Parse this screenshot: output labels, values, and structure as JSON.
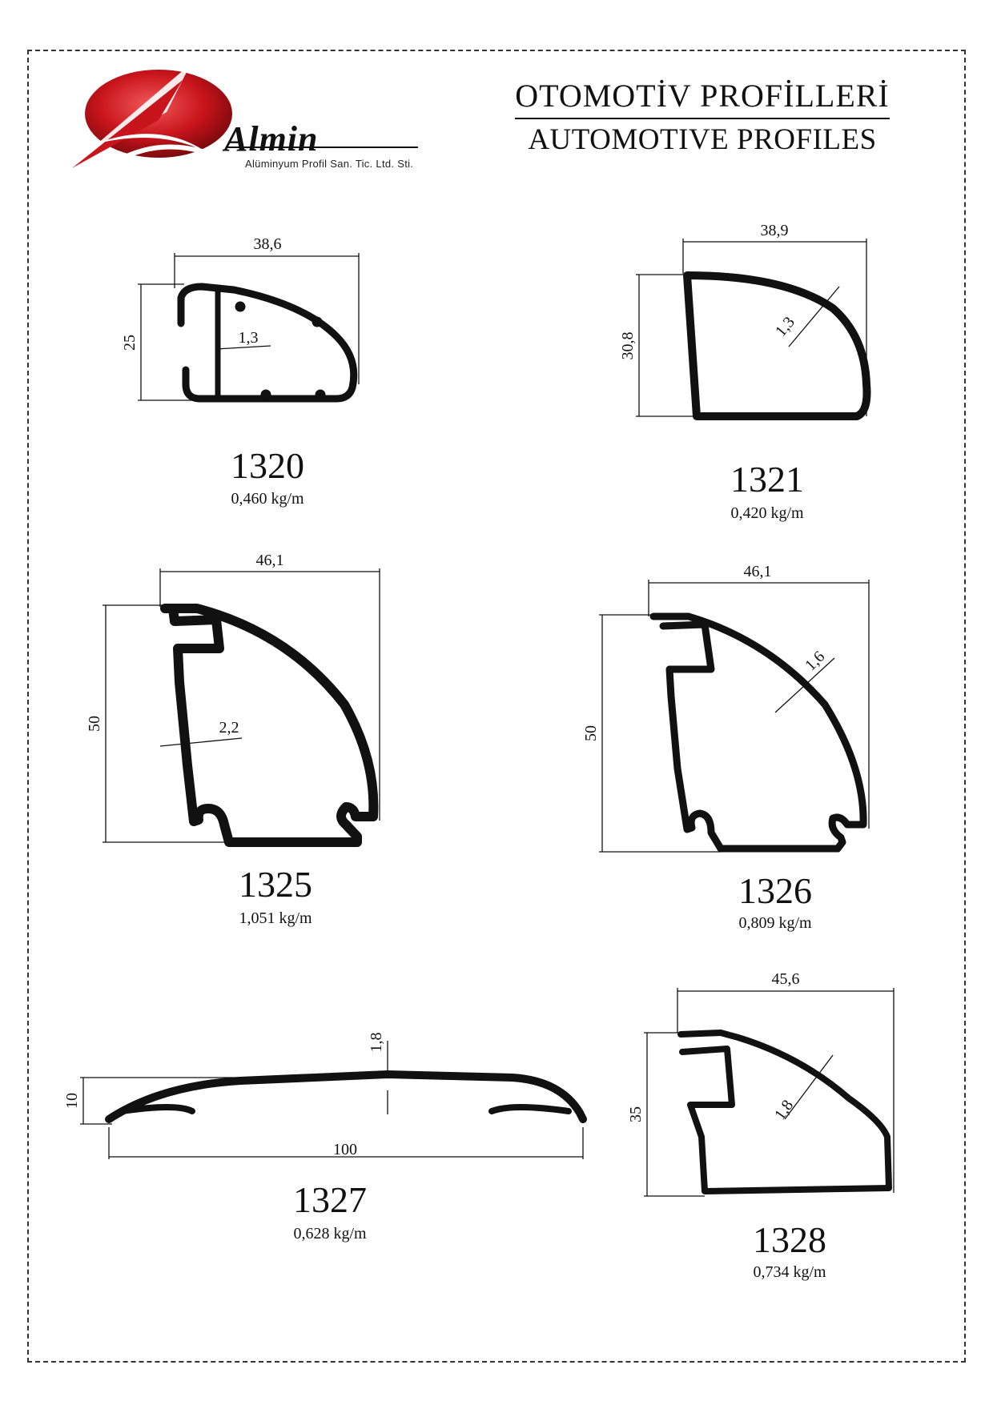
{
  "header": {
    "title_tr": "OTOMOTİV  PROFİLLERİ",
    "title_en": "AUTOMOTIVE PROFILES",
    "brand": "Almin",
    "brand_sub": "Alüminyum Profil San. Tic. Ltd. Sti."
  },
  "profiles": [
    {
      "code": "1320",
      "weight": "0,460 kg/m",
      "dims": {
        "width": "38,6",
        "height": "25",
        "wall": "1,3"
      }
    },
    {
      "code": "1321",
      "weight": "0,420 kg/m",
      "dims": {
        "width": "38,9",
        "height": "30,8",
        "wall": "1,3"
      }
    },
    {
      "code": "1325",
      "weight": "1,051 kg/m",
      "dims": {
        "width": "46,1",
        "height": "50",
        "wall": "2,2"
      }
    },
    {
      "code": "1326",
      "weight": "0,809 kg/m",
      "dims": {
        "width": "46,1",
        "height": "50",
        "wall": "1,6"
      }
    },
    {
      "code": "1327",
      "weight": "0,628 kg/m",
      "dims": {
        "width": "100",
        "height": "10",
        "wall": "1,8"
      }
    },
    {
      "code": "1328",
      "weight": "0,734 kg/m",
      "dims": {
        "width": "45,6",
        "height": "35",
        "wall": "1,8"
      }
    }
  ],
  "colors": {
    "logo_red": "#c8141b",
    "ink": "#111111"
  }
}
